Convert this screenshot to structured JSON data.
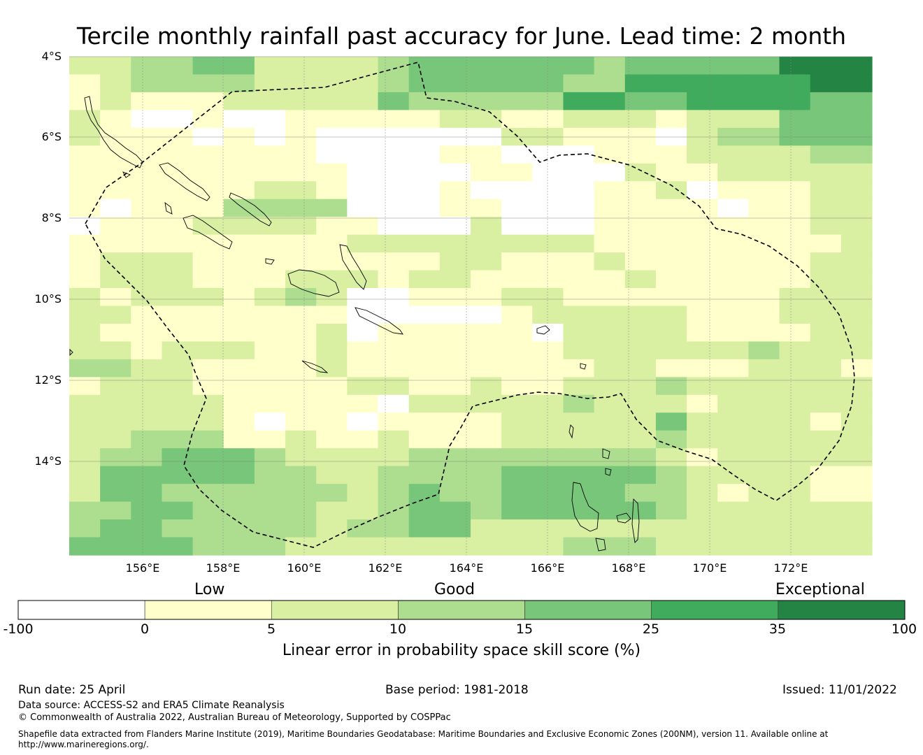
{
  "title": "Tercile monthly rainfall past accuracy for June. Lead time: 2 month",
  "lat_labels": [
    "4°S",
    "6°S",
    "8°S",
    "10°S",
    "12°S",
    "14°S"
  ],
  "lon_labels": [
    "156°E",
    "158°E",
    "160°E",
    "162°E",
    "164°E",
    "166°E",
    "168°E",
    "170°E",
    "172°E"
  ],
  "legend": {
    "categories": [
      "Low",
      "Good",
      "Exceptional"
    ],
    "ticks": [
      "-100",
      "0",
      "5",
      "10",
      "15",
      "25",
      "35",
      "100"
    ],
    "colors": [
      "#ffffff",
      "#ffffcc",
      "#d9f0a3",
      "#addd8e",
      "#78c679",
      "#41ab5d",
      "#238443"
    ],
    "label": "Linear error in probability space skill score (%)"
  },
  "grid": {
    "bins": "0=-100..0, 1=0..5, 2=5..10, 3=10..15, 4=15..25, 5=25..35, 6=35..100",
    "rows": [
      "22334422223444444344444666",
      "12333322223444443355555566",
      "12111222224333335544555544",
      "21001001111122112221222444",
      "21110101000000221110233444",
      "11111111000011000111222233",
      "11111111100001100021122222",
      "11111122100010000112011122",
      "10111333300011000111101122",
      "01112222110002000111111122",
      "11111111122222222111111112",
      "12221111111122111211111122",
      "12221112221221111121111122",
      "21222123200111221111111222",
      "22111111100000122222111222",
      "21111111201111102222111122",
      "22122211211111112222223222",
      "33221111211111111221112221",
      "12221111122112112223222222",
      "22222111110222223222122222",
      "22222101101111222224222212",
      "22333112112111222223222222",
      "23344432222333333332122222",
      "24444433223333444443222211",
      "24433333323433444433212211",
      "33443333223443444443222222",
      "34433333233442222222222222",
      "44443332222222223332222222"
    ]
  },
  "footer": {
    "run_date": "Run date: 25 April",
    "base_period": "Base period: 1981-2018",
    "issued": "Issued: 11/01/2022",
    "data_source": "Data source: ACCESS-S2 and ERA5 Climate Reanalysis",
    "copyright": "© Commonwealth of Australia 2022, Australian Bureau of Meteorology, Supported by COSPPac",
    "shapefile_line1": "Shapefile data extracted from Flanders Marine Institute (2019), Maritime Boundaries Geodatabase: Maritime Boundaries and Exclusive Economic Zones (200NM), version 11. Available online at",
    "shapefile_line2": "http://www.marineregions.org/."
  }
}
